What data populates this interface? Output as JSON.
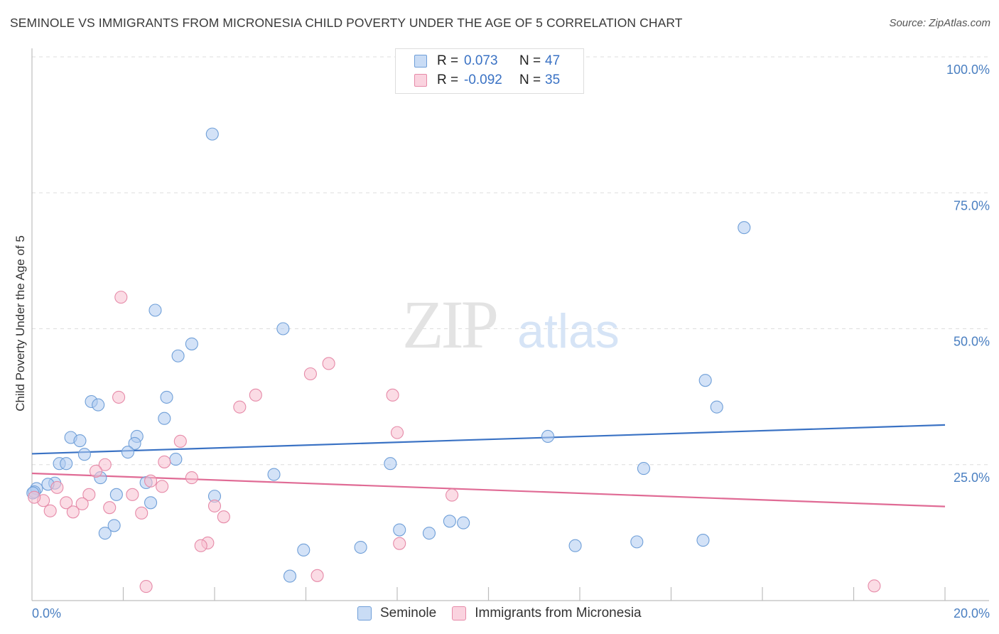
{
  "title": "SEMINOLE VS IMMIGRANTS FROM MICRONESIA CHILD POVERTY UNDER THE AGE OF 5 CORRELATION CHART",
  "source": "Source: ZipAtlas.com",
  "watermark": {
    "zip": "ZIP",
    "atlas": "atlas"
  },
  "legend": {
    "r_label": "R =",
    "n_label": "N =",
    "series": [
      {
        "name": "Seminole",
        "r": "0.073",
        "n": "47",
        "fill": "#aecbf0",
        "stroke": "#6f9fd8"
      },
      {
        "name": "Immigrants from Micronesia",
        "r": "-0.092",
        "n": "35",
        "fill": "#f7bfd0",
        "stroke": "#e68aa8"
      }
    ]
  },
  "chart_data": {
    "type": "scatter",
    "title": "SEMINOLE VS IMMIGRANTS FROM MICRONESIA CHILD POVERTY UNDER THE AGE OF 5 CORRELATION CHART",
    "xlabel": "",
    "ylabel": "Child Poverty Under the Age of 5",
    "xlim": [
      0,
      20
    ],
    "ylim": [
      0,
      100
    ],
    "x_tick_labels": [
      {
        "value": 0,
        "label": "0.0%"
      },
      {
        "value": 20,
        "label": "20.0%"
      }
    ],
    "y_tick_labels": [
      {
        "value": 25,
        "label": "25.0%"
      },
      {
        "value": 50,
        "label": "50.0%"
      },
      {
        "value": 75,
        "label": "75.0%"
      },
      {
        "value": 100,
        "label": "100.0%"
      }
    ],
    "series": [
      {
        "name": "Seminole",
        "color": "#6f9fd8",
        "trend": {
          "x": [
            0,
            20
          ],
          "y": [
            27.0,
            32.3
          ],
          "color": "#3a72c4"
        },
        "points": [
          [
            3.95,
            85.8
          ],
          [
            15.6,
            68.6
          ],
          [
            2.7,
            53.4
          ],
          [
            5.5,
            50.0
          ],
          [
            3.5,
            47.2
          ],
          [
            3.2,
            45.0
          ],
          [
            14.75,
            40.5
          ],
          [
            15.0,
            35.6
          ],
          [
            1.3,
            36.6
          ],
          [
            1.45,
            36.0
          ],
          [
            2.95,
            37.4
          ],
          [
            2.9,
            33.5
          ],
          [
            11.3,
            30.2
          ],
          [
            0.85,
            30.0
          ],
          [
            1.05,
            29.4
          ],
          [
            2.3,
            30.2
          ],
          [
            2.25,
            28.9
          ],
          [
            2.1,
            27.3
          ],
          [
            1.15,
            26.9
          ],
          [
            3.15,
            26.0
          ],
          [
            0.6,
            25.2
          ],
          [
            0.75,
            25.2
          ],
          [
            7.85,
            25.2
          ],
          [
            13.4,
            24.3
          ],
          [
            5.3,
            23.2
          ],
          [
            1.5,
            22.6
          ],
          [
            2.5,
            21.7
          ],
          [
            0.5,
            21.6
          ],
          [
            0.35,
            21.4
          ],
          [
            0.1,
            20.6
          ],
          [
            0.05,
            20.0
          ],
          [
            1.85,
            19.5
          ],
          [
            4.0,
            19.2
          ],
          [
            2.6,
            18.0
          ],
          [
            1.8,
            13.8
          ],
          [
            1.6,
            12.4
          ],
          [
            9.15,
            14.6
          ],
          [
            9.45,
            14.3
          ],
          [
            8.05,
            13.0
          ],
          [
            8.7,
            12.4
          ],
          [
            14.7,
            11.1
          ],
          [
            13.25,
            10.8
          ],
          [
            11.9,
            10.1
          ],
          [
            7.2,
            9.8
          ],
          [
            5.95,
            9.3
          ],
          [
            5.65,
            4.5
          ],
          [
            0.02,
            19.8
          ]
        ]
      },
      {
        "name": "Immigrants from Micronesia",
        "color": "#e68aa8",
        "trend": {
          "x": [
            0,
            20
          ],
          "y": [
            23.4,
            17.3
          ],
          "color": "#e06b95"
        },
        "points": [
          [
            1.95,
            55.8
          ],
          [
            6.5,
            43.6
          ],
          [
            6.1,
            41.7
          ],
          [
            1.9,
            37.4
          ],
          [
            4.9,
            37.8
          ],
          [
            7.9,
            37.8
          ],
          [
            4.55,
            35.6
          ],
          [
            8.0,
            30.9
          ],
          [
            3.25,
            29.3
          ],
          [
            2.9,
            25.5
          ],
          [
            1.6,
            25.0
          ],
          [
            1.4,
            23.8
          ],
          [
            3.5,
            22.6
          ],
          [
            2.6,
            22.0
          ],
          [
            2.85,
            21.0
          ],
          [
            0.55,
            20.8
          ],
          [
            1.25,
            19.5
          ],
          [
            2.2,
            19.5
          ],
          [
            9.2,
            19.4
          ],
          [
            0.25,
            18.4
          ],
          [
            0.75,
            18.0
          ],
          [
            1.1,
            17.8
          ],
          [
            4.0,
            17.4
          ],
          [
            1.7,
            17.1
          ],
          [
            0.4,
            16.5
          ],
          [
            0.9,
            16.3
          ],
          [
            2.4,
            16.1
          ],
          [
            4.2,
            15.4
          ],
          [
            3.85,
            10.6
          ],
          [
            3.7,
            10.1
          ],
          [
            8.05,
            10.5
          ],
          [
            6.25,
            4.6
          ],
          [
            2.5,
            2.6
          ],
          [
            18.45,
            2.7
          ],
          [
            0.05,
            19.0
          ]
        ]
      }
    ]
  }
}
